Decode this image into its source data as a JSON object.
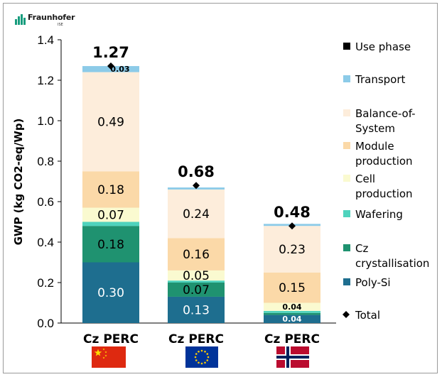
{
  "logo": {
    "name": "Fraunhofer",
    "sub": "ISE"
  },
  "chart_data": {
    "type": "bar",
    "stacked": true,
    "ylabel": "GWP (kg CO2-eq/Wp)",
    "ylim": [
      0,
      1.4
    ],
    "yticks": [
      "0.0",
      "0.2",
      "0.4",
      "0.6",
      "0.8",
      "1.0",
      "1.2",
      "1.4"
    ],
    "ytick_values": [
      0,
      0.2,
      0.4,
      0.6,
      0.8,
      1.0,
      1.2,
      1.4
    ],
    "categories": [
      "Cz PERC",
      "Cz PERC",
      "Cz PERC"
    ],
    "flags": [
      "china-flag",
      "eu-flag",
      "norway-flag"
    ],
    "series": [
      {
        "name": "Poly-Si",
        "color": "#1e6e8f",
        "values": [
          0.3,
          0.13,
          0.04
        ],
        "labels": [
          "0.30",
          "0.13",
          "0.04"
        ],
        "label_color": "#ffffff"
      },
      {
        "name": "Cz crystallisation",
        "color": "#1f9270",
        "values": [
          0.18,
          0.07,
          0.01
        ],
        "labels": [
          "0.18",
          "0.07",
          ""
        ],
        "label_color": "#000000"
      },
      {
        "name": "Wafering",
        "color": "#4fd3bd",
        "values": [
          0.02,
          0.01,
          0.01
        ],
        "labels": [
          "",
          "",
          ""
        ],
        "label_color": "#000000"
      },
      {
        "name": "Cell production",
        "color": "#fafad0",
        "values": [
          0.07,
          0.05,
          0.04
        ],
        "labels": [
          "0.07",
          "0.05",
          "0.04"
        ],
        "label_color": "#000000"
      },
      {
        "name": "Module production",
        "color": "#fbd9a8",
        "values": [
          0.18,
          0.16,
          0.15
        ],
        "labels": [
          "0.18",
          "0.16",
          "0.15"
        ],
        "label_color": "#000000"
      },
      {
        "name": "Balance-of-System",
        "color": "#fdeddb",
        "values": [
          0.49,
          0.24,
          0.23
        ],
        "labels": [
          "0.49",
          "0.24",
          "0.23"
        ],
        "label_color": "#000000"
      },
      {
        "name": "Transport",
        "color": "#8ccbe8",
        "values": [
          0.03,
          0.01,
          0.01
        ],
        "labels": [
          "0.03",
          "",
          ""
        ],
        "label_color": "#000000"
      },
      {
        "name": "Use phase",
        "color": "#000000",
        "values": [
          0,
          0,
          0
        ],
        "labels": [
          "",
          "",
          ""
        ],
        "label_color": "#000000"
      }
    ],
    "totals": [
      1.27,
      0.68,
      0.48
    ],
    "total_labels": [
      "1.27",
      "0.68",
      "0.48"
    ],
    "legend": [
      {
        "label": "Use phase",
        "marker": "square",
        "color": "#000000"
      },
      {
        "label": "Transport",
        "marker": "square",
        "color": "#8ccbe8"
      },
      {
        "label": "Balance-of-System",
        "marker": "square",
        "color": "#fdeddb"
      },
      {
        "label": "Module production",
        "marker": "square",
        "color": "#fbd9a8"
      },
      {
        "label": "Cell production",
        "marker": "square",
        "color": "#fafad0"
      },
      {
        "label": "Wafering",
        "marker": "square",
        "color": "#4fd3bd"
      },
      {
        "label": "Cz crystallisation",
        "marker": "square",
        "color": "#1f9270"
      },
      {
        "label": "Poly-Si",
        "marker": "square",
        "color": "#1e6e8f"
      },
      {
        "label": "Total",
        "marker": "diamond",
        "color": "#000000"
      }
    ],
    "legend_position": "right"
  }
}
